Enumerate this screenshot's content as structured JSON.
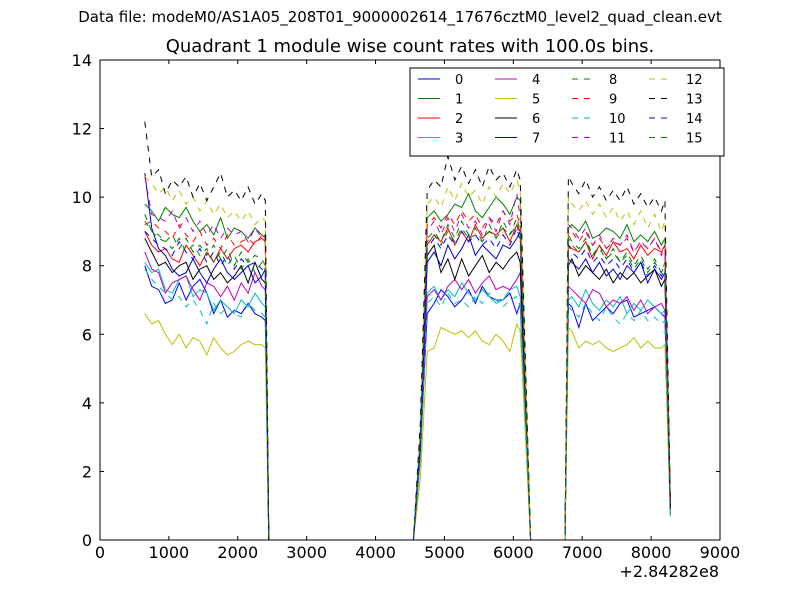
{
  "suptitle": "Data file: modeM0/AS1A05_208T01_9000002614_17676cztM0_level2_quad_clean.evt",
  "chart_data": {
    "type": "line",
    "title": "Quadrant 1 module wise count rates with 100.0s bins.",
    "xlabel": "",
    "ylabel": "",
    "x_offset_label": "+2.84282e8",
    "xlim": [
      0,
      9000
    ],
    "ylim": [
      0,
      14
    ],
    "x_ticks": [
      0,
      1000,
      2000,
      3000,
      4000,
      5000,
      6000,
      7000,
      8000,
      9000
    ],
    "y_ticks": [
      0,
      2,
      4,
      6,
      8,
      10,
      12,
      14
    ],
    "legend_position": "top-right",
    "legend_columns": 4,
    "x": [
      650,
      750,
      850,
      950,
      1050,
      1150,
      1250,
      1350,
      1450,
      1550,
      1650,
      1750,
      1850,
      1950,
      2050,
      2150,
      2250,
      2350,
      2400,
      2450,
      2500,
      4550,
      4650,
      4750,
      4850,
      4950,
      5050,
      5150,
      5250,
      5350,
      5450,
      5550,
      5650,
      5750,
      5850,
      5950,
      6050,
      6100,
      6250,
      6750,
      6800,
      6850,
      6950,
      7050,
      7150,
      7250,
      7350,
      7450,
      7550,
      7650,
      7750,
      7850,
      7950,
      8050,
      8150,
      8200,
      8280
    ],
    "series": [
      {
        "name": "0",
        "color": "#0000ff",
        "style": "solid",
        "values": [
          8.0,
          7.4,
          7.3,
          6.9,
          7.0,
          7.5,
          7.0,
          7.4,
          7.6,
          7.2,
          6.6,
          7.0,
          6.5,
          6.7,
          6.6,
          6.9,
          6.6,
          6.5,
          6.4,
          0,
          0,
          0,
          2.5,
          6.6,
          6.9,
          7.3,
          7.1,
          6.8,
          7.0,
          7.3,
          6.9,
          7.4,
          7.1,
          7.0,
          7.0,
          7.2,
          6.6,
          6.9,
          0,
          0,
          6.9,
          6.8,
          6.2,
          6.9,
          6.4,
          6.6,
          6.8,
          6.6,
          6.9,
          7.0,
          6.5,
          6.6,
          6.7,
          6.8,
          6.6,
          6.5,
          0.7
        ]
      },
      {
        "name": "1",
        "color": "#008000",
        "style": "solid",
        "values": [
          9.8,
          9.6,
          9.3,
          9.7,
          9.5,
          9.4,
          9.7,
          9.3,
          9.0,
          9.2,
          8.9,
          9.4,
          8.8,
          9.1,
          9.0,
          8.8,
          9.1,
          8.9,
          8.8,
          0,
          0,
          0,
          3.0,
          9.4,
          9.6,
          9.3,
          9.5,
          9.8,
          9.7,
          10.1,
          9.6,
          9.4,
          9.7,
          10.0,
          9.8,
          9.5,
          10.0,
          9.9,
          0,
          0,
          9.1,
          9.2,
          9.0,
          9.3,
          8.8,
          8.9,
          9.1,
          9.0,
          8.8,
          9.2,
          8.7,
          8.9,
          8.7,
          9.0,
          8.6,
          8.8,
          1.0
        ]
      },
      {
        "name": "2",
        "color": "#ff0000",
        "style": "solid",
        "values": [
          9.0,
          8.6,
          8.4,
          8.5,
          8.2,
          8.1,
          8.6,
          8.3,
          8.0,
          8.4,
          8.1,
          8.5,
          8.2,
          8.5,
          8.6,
          8.4,
          8.7,
          8.8,
          8.7,
          0,
          0,
          0,
          2.9,
          8.6,
          8.9,
          8.7,
          9.1,
          8.6,
          9.0,
          8.7,
          9.2,
          8.8,
          9.0,
          8.9,
          9.1,
          8.7,
          9.2,
          9.0,
          0,
          0,
          8.6,
          8.5,
          8.4,
          8.7,
          8.2,
          8.6,
          8.3,
          8.7,
          8.4,
          8.5,
          8.2,
          8.6,
          8.3,
          8.5,
          8.4,
          8.6,
          1.0
        ]
      },
      {
        "name": "3",
        "color": "#00bfbf",
        "style": "solid",
        "values": [
          8.1,
          7.8,
          7.9,
          7.3,
          7.2,
          7.6,
          7.7,
          7.1,
          7.3,
          7.2,
          6.7,
          7.0,
          6.8,
          6.6,
          7.0,
          6.8,
          7.2,
          6.9,
          6.8,
          0,
          0,
          0,
          2.4,
          7.2,
          7.4,
          7.0,
          7.3,
          7.1,
          7.5,
          7.2,
          7.0,
          7.3,
          7.1,
          6.9,
          7.0,
          7.3,
          7.4,
          7.1,
          0,
          0,
          7.0,
          7.1,
          6.8,
          7.3,
          6.9,
          6.7,
          7.0,
          6.8,
          7.1,
          6.6,
          6.9,
          6.7,
          7.0,
          6.8,
          6.6,
          6.7,
          0.8
        ]
      },
      {
        "name": "4",
        "color": "#bf00bf",
        "style": "solid",
        "values": [
          8.4,
          7.9,
          7.8,
          7.2,
          7.5,
          7.6,
          7.7,
          7.3,
          7.0,
          7.5,
          7.4,
          7.1,
          7.4,
          7.0,
          7.5,
          7.2,
          7.8,
          7.4,
          7.3,
          0,
          0,
          0,
          2.5,
          7.1,
          7.3,
          7.0,
          7.4,
          7.6,
          7.3,
          7.6,
          7.2,
          7.5,
          7.7,
          7.3,
          7.4,
          7.3,
          7.6,
          7.8,
          0,
          0,
          7.4,
          7.3,
          7.1,
          6.9,
          7.3,
          7.2,
          6.8,
          7.0,
          6.9,
          7.1,
          6.7,
          7.0,
          6.6,
          6.8,
          6.9,
          6.7,
          0.8
        ]
      },
      {
        "name": "5",
        "color": "#bfbf00",
        "style": "solid",
        "values": [
          6.6,
          6.3,
          6.4,
          6.0,
          5.7,
          6.0,
          5.6,
          5.9,
          5.8,
          5.4,
          5.9,
          5.6,
          5.4,
          5.5,
          5.7,
          5.8,
          5.7,
          5.7,
          5.6,
          0,
          0,
          0,
          1.8,
          5.5,
          5.6,
          6.2,
          6.1,
          6.0,
          6.1,
          5.9,
          6.1,
          5.8,
          5.7,
          6.0,
          5.8,
          5.5,
          6.3,
          6.1,
          0,
          0,
          6.2,
          6.1,
          5.6,
          5.8,
          5.7,
          5.8,
          5.6,
          5.5,
          5.6,
          5.7,
          5.9,
          5.6,
          5.8,
          5.6,
          5.6,
          5.7,
          0.7
        ]
      },
      {
        "name": "6",
        "color": "#000000",
        "style": "solid",
        "values": [
          8.8,
          8.4,
          8.0,
          8.1,
          7.8,
          8.0,
          8.1,
          7.6,
          7.9,
          8.0,
          7.6,
          7.8,
          7.5,
          7.7,
          8.0,
          7.5,
          8.1,
          7.6,
          7.5,
          0,
          0,
          0,
          2.7,
          8.3,
          8.6,
          7.8,
          8.2,
          7.6,
          8.2,
          7.7,
          8.0,
          8.3,
          7.8,
          8.1,
          7.9,
          8.2,
          8.4,
          8.1,
          0,
          0,
          8.0,
          8.2,
          7.7,
          8.0,
          7.8,
          7.6,
          7.9,
          7.5,
          7.8,
          7.6,
          7.8,
          7.5,
          7.7,
          7.9,
          7.4,
          7.6,
          0.9
        ]
      },
      {
        "name": "7",
        "color": "#0000bf",
        "style": "solid",
        "values": [
          10.7,
          9.1,
          8.5,
          8.3,
          7.9,
          7.7,
          7.8,
          8.2,
          7.8,
          7.5,
          7.9,
          8.2,
          7.8,
          7.6,
          7.8,
          8.0,
          7.5,
          7.7,
          7.9,
          0,
          0,
          0,
          2.6,
          8.1,
          8.4,
          8.0,
          8.6,
          8.2,
          8.5,
          8.9,
          8.3,
          8.6,
          8.4,
          8.2,
          8.6,
          8.5,
          8.8,
          9.0,
          0,
          0,
          8.2,
          8.1,
          7.9,
          8.2,
          7.8,
          8.1,
          7.7,
          7.9,
          7.6,
          8.0,
          7.8,
          8.1,
          7.5,
          7.9,
          7.6,
          7.8,
          0.9
        ]
      },
      {
        "name": "8",
        "color": "#008000",
        "style": "dashed",
        "values": [
          9.5,
          9.0,
          8.9,
          8.7,
          8.9,
          8.5,
          8.8,
          8.4,
          8.6,
          8.3,
          8.6,
          8.2,
          8.5,
          8.0,
          8.4,
          8.1,
          8.3,
          8.2,
          8.0,
          0,
          0,
          0,
          2.8,
          8.7,
          8.9,
          8.6,
          9.0,
          8.7,
          9.1,
          8.8,
          8.9,
          8.7,
          9.0,
          8.8,
          9.1,
          8.9,
          9.2,
          8.8,
          0,
          0,
          8.8,
          8.6,
          8.4,
          8.7,
          8.3,
          8.5,
          8.2,
          8.4,
          8.1,
          8.3,
          7.9,
          8.2,
          7.8,
          8.1,
          7.8,
          8.0,
          0.9
        ]
      },
      {
        "name": "9",
        "color": "#ff0000",
        "style": "dashed",
        "values": [
          9.2,
          9.3,
          9.1,
          9.0,
          8.8,
          9.2,
          8.9,
          8.7,
          9.0,
          8.6,
          8.8,
          8.5,
          8.9,
          8.6,
          8.7,
          8.8,
          8.6,
          8.9,
          8.7,
          0,
          0,
          0,
          3.0,
          9.2,
          9.4,
          9.1,
          9.5,
          9.2,
          9.6,
          9.3,
          9.5,
          9.1,
          9.4,
          9.2,
          9.6,
          9.3,
          9.5,
          9.2,
          0,
          0,
          8.9,
          9.0,
          8.7,
          9.0,
          8.6,
          8.8,
          8.5,
          8.7,
          8.6,
          8.8,
          8.4,
          8.7,
          8.5,
          8.8,
          8.4,
          8.6,
          1.0
        ]
      },
      {
        "name": "10",
        "color": "#00bfbf",
        "style": "dashed",
        "values": [
          7.9,
          7.6,
          7.4,
          7.2,
          7.0,
          7.1,
          6.8,
          7.0,
          6.7,
          6.3,
          6.9,
          6.6,
          6.8,
          6.6,
          6.5,
          6.9,
          6.7,
          6.6,
          6.5,
          0,
          0,
          0,
          2.3,
          6.9,
          7.1,
          6.8,
          7.2,
          6.9,
          7.0,
          6.8,
          7.1,
          6.9,
          7.2,
          7.0,
          6.8,
          7.0,
          7.1,
          6.8,
          0,
          0,
          6.8,
          6.7,
          6.5,
          6.9,
          6.6,
          6.4,
          6.8,
          6.5,
          6.3,
          6.6,
          6.4,
          6.7,
          6.4,
          6.5,
          6.3,
          6.4,
          0.7
        ]
      },
      {
        "name": "11",
        "color": "#bf00bf",
        "style": "dashed",
        "values": [
          10.6,
          9.5,
          9.4,
          9.3,
          9.6,
          9.1,
          9.4,
          9.0,
          9.3,
          8.9,
          9.2,
          8.8,
          9.1,
          8.9,
          9.0,
          8.7,
          9.1,
          8.8,
          8.9,
          0,
          0,
          0,
          3.1,
          9.0,
          9.3,
          8.9,
          9.4,
          9.0,
          9.5,
          9.1,
          9.3,
          8.9,
          9.4,
          9.0,
          9.6,
          9.2,
          10.1,
          9.4,
          0,
          0,
          9.2,
          9.1,
          8.8,
          9.1,
          8.6,
          8.9,
          8.5,
          8.8,
          8.6,
          8.9,
          8.4,
          8.7,
          8.5,
          8.8,
          8.3,
          8.6,
          1.0
        ]
      },
      {
        "name": "12",
        "color": "#bfbf00",
        "style": "dashed",
        "values": [
          10.6,
          10.4,
          10.1,
          10.3,
          9.9,
          10.2,
          9.8,
          10.0,
          9.6,
          9.9,
          9.5,
          9.8,
          9.4,
          9.6,
          9.3,
          9.6,
          9.2,
          9.4,
          9.3,
          0,
          0,
          0,
          3.2,
          9.8,
          10.0,
          9.7,
          10.3,
          9.9,
          10.4,
          10.0,
          10.2,
          9.8,
          10.3,
          10.0,
          10.4,
          10.1,
          10.5,
          10.2,
          0,
          0,
          10.0,
          9.8,
          9.6,
          9.9,
          9.5,
          9.8,
          9.4,
          9.7,
          9.3,
          9.6,
          9.2,
          9.6,
          9.1,
          9.5,
          9.0,
          9.3,
          1.0
        ]
      },
      {
        "name": "13",
        "color": "#000000",
        "style": "dashed",
        "values": [
          12.2,
          10.6,
          10.8,
          10.1,
          10.5,
          10.3,
          10.6,
          10.0,
          10.4,
          9.9,
          10.3,
          10.7,
          10.0,
          10.2,
          9.9,
          10.3,
          9.8,
          10.1,
          9.9,
          0,
          0,
          0,
          3.4,
          10.2,
          10.5,
          10.3,
          11.2,
          10.5,
          10.9,
          10.4,
          10.8,
          10.3,
          10.9,
          10.5,
          10.7,
          10.3,
          10.8,
          10.5,
          0,
          0,
          10.6,
          10.4,
          10.1,
          10.5,
          10.0,
          10.3,
          9.9,
          10.2,
          9.9,
          10.3,
          9.8,
          10.1,
          9.7,
          10.0,
          9.6,
          9.9,
          1.0
        ]
      },
      {
        "name": "14",
        "color": "#0000ff",
        "style": "dashed",
        "values": [
          9.0,
          8.8,
          8.6,
          8.5,
          8.3,
          8.7,
          8.4,
          8.2,
          8.5,
          8.1,
          8.4,
          8.0,
          8.3,
          7.9,
          8.2,
          8.0,
          8.1,
          7.9,
          7.8,
          0,
          0,
          0,
          2.8,
          8.5,
          8.8,
          8.5,
          8.9,
          8.6,
          9.0,
          8.7,
          8.9,
          8.6,
          8.8,
          8.5,
          8.9,
          8.6,
          9.1,
          8.7,
          0,
          0,
          8.6,
          8.4,
          8.2,
          8.5,
          8.1,
          8.3,
          8.0,
          8.2,
          7.9,
          8.2,
          7.8,
          8.1,
          7.7,
          8.0,
          7.7,
          7.9,
          0.9
        ]
      },
      {
        "name": "15",
        "color": "#008000",
        "style": "dashed",
        "values": [
          9.3,
          9.0,
          8.8,
          8.7,
          8.5,
          8.8,
          8.4,
          8.6,
          8.3,
          8.5,
          8.1,
          8.4,
          8.0,
          8.3,
          7.9,
          8.2,
          7.8,
          8.1,
          7.9,
          0,
          0,
          0,
          2.9,
          8.8,
          9.0,
          8.7,
          9.2,
          8.8,
          9.3,
          8.9,
          9.1,
          8.7,
          9.2,
          8.8,
          9.3,
          8.9,
          9.4,
          9.0,
          0,
          0,
          8.9,
          8.7,
          8.5,
          8.8,
          8.3,
          8.6,
          8.2,
          8.5,
          8.1,
          8.4,
          8.0,
          8.3,
          7.9,
          8.2,
          7.8,
          8.1,
          0.9
        ]
      }
    ]
  }
}
